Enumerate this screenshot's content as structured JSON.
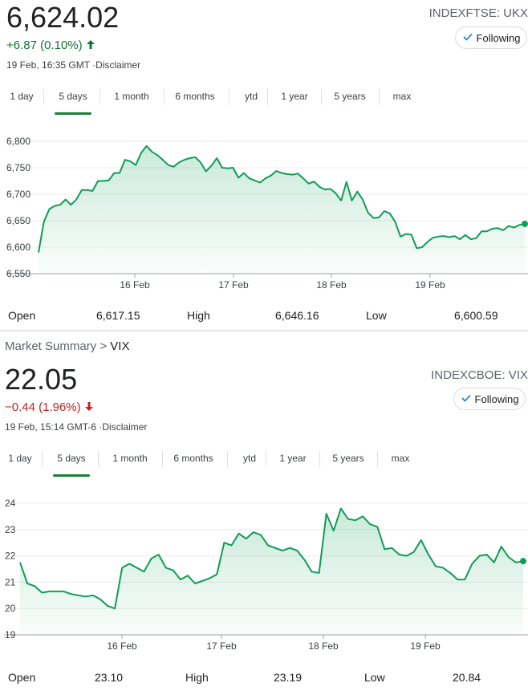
{
  "ukx": {
    "price": "6,624.02",
    "change": "+6.87 (0.10%)",
    "change_arrow": "up-arrow",
    "timestamp": "19 Feb, 16:35 GMT ·",
    "disclaimer": "Disclaimer",
    "ticker": "INDEXFTSE: UKX",
    "follow_label": "Following",
    "tabs": [
      "1 day",
      "5 days",
      "1 month",
      "6 months",
      "ytd",
      "1 year",
      "5 years",
      "max"
    ],
    "active_tab": "5 days",
    "stats": {
      "open_label": "Open",
      "open": "6,617.15",
      "high_label": "High",
      "high": "6,646.16",
      "low_label": "Low",
      "low": "6,600.59"
    },
    "chart_data": {
      "type": "area",
      "y_ticks": [
        "6,800",
        "6,750",
        "6,700",
        "6,650",
        "6,600",
        "6,550"
      ],
      "ylim": [
        6550,
        6800
      ],
      "x_ticks": [
        "16 Feb",
        "17 Feb",
        "18 Feb",
        "19 Feb"
      ],
      "grid": true,
      "line_color": "#0f9d58",
      "values": [
        6590,
        6648,
        6672,
        6678,
        6680,
        6690,
        6680,
        6690,
        6708,
        6708,
        6706,
        6725,
        6725,
        6726,
        6740,
        6740,
        6765,
        6762,
        6755,
        6778,
        6791,
        6780,
        6774,
        6765,
        6755,
        6752,
        6760,
        6765,
        6768,
        6770,
        6760,
        6743,
        6754,
        6768,
        6750,
        6749,
        6750,
        6731,
        6740,
        6730,
        6726,
        6722,
        6730,
        6735,
        6744,
        6740,
        6738,
        6737,
        6739,
        6730,
        6720,
        6724,
        6714,
        6709,
        6710,
        6702,
        6688,
        6723,
        6688,
        6705,
        6690,
        6665,
        6655,
        6656,
        6668,
        6664,
        6648,
        6620,
        6625,
        6624,
        6598,
        6600,
        6610,
        6618,
        6620,
        6621,
        6619,
        6621,
        6615,
        6623,
        6615,
        6617,
        6630,
        6630,
        6635,
        6636,
        6632,
        6640,
        6637,
        6642,
        6644
      ]
    }
  },
  "vix": {
    "breadcrumb_parent": "Market Summary",
    "breadcrumb_sep": ">",
    "breadcrumb_current": "VIX",
    "price": "22.05",
    "change": "−0.44 (1.96%)",
    "change_arrow": "down-arrow",
    "timestamp": "19 Feb, 15:14 GMT-6 ·",
    "disclaimer": "Disclaimer",
    "ticker": "INDEXCBOE: VIX",
    "follow_label": "Following",
    "tabs": [
      "1 day",
      "5 days",
      "1 month",
      "6 months",
      "ytd",
      "1 year",
      "5 years",
      "max"
    ],
    "active_tab": "5 days",
    "stats": {
      "open_label": "Open",
      "open": "23.10",
      "high_label": "High",
      "high": "23.19",
      "low_label": "Low",
      "low": "20.84"
    },
    "chart_data": {
      "type": "area",
      "y_ticks": [
        "24",
        "23",
        "22",
        "21",
        "20",
        "19"
      ],
      "ylim": [
        19,
        24
      ],
      "x_ticks": [
        "16 Feb",
        "17 Feb",
        "18 Feb",
        "19 Feb"
      ],
      "grid": true,
      "line_color": "#0f9d58",
      "values": [
        21.75,
        20.95,
        20.85,
        20.6,
        20.65,
        20.65,
        20.65,
        20.55,
        20.5,
        20.45,
        20.5,
        20.35,
        20.1,
        20.0,
        21.55,
        21.7,
        21.55,
        21.4,
        21.9,
        22.05,
        21.55,
        21.45,
        21.1,
        21.25,
        20.95,
        21.05,
        21.15,
        21.3,
        22.5,
        22.4,
        22.85,
        22.65,
        22.9,
        22.8,
        22.4,
        22.3,
        22.2,
        22.3,
        22.2,
        21.85,
        21.4,
        21.35,
        23.6,
        22.95,
        23.8,
        23.4,
        23.35,
        23.5,
        23.2,
        23.1,
        22.25,
        22.3,
        22.05,
        22.0,
        22.15,
        22.6,
        22.05,
        21.6,
        21.55,
        21.35,
        21.1,
        21.1,
        21.7,
        22.0,
        22.05,
        21.75,
        22.35,
        21.95,
        21.75,
        21.8
      ]
    }
  }
}
